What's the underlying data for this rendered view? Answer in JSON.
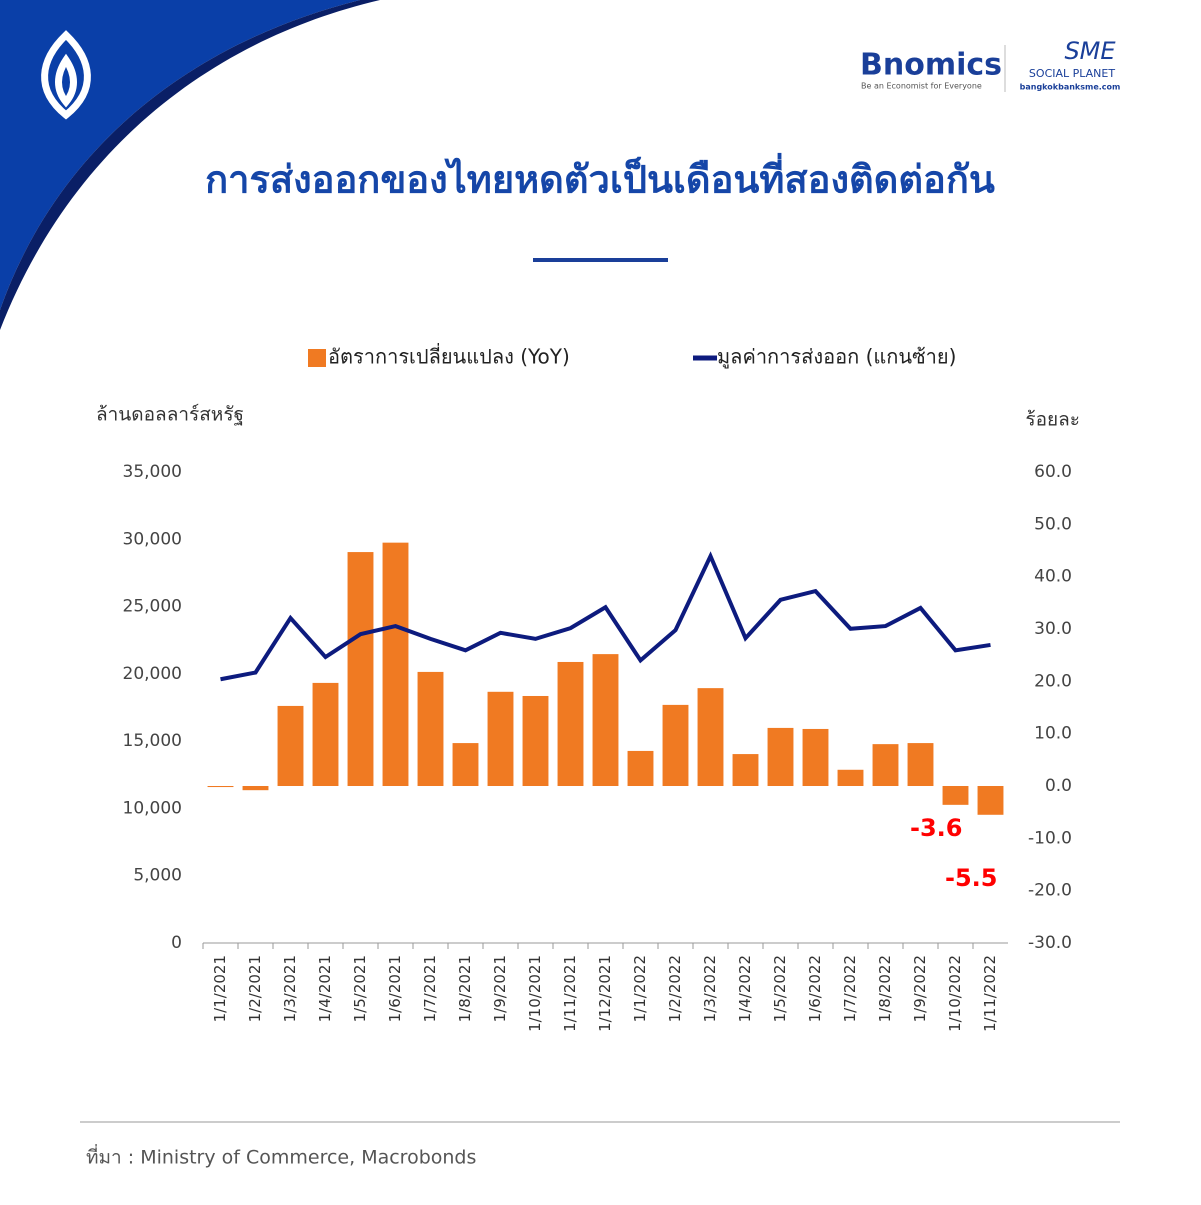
{
  "header": {
    "brand": "Bnomics",
    "tagline": "Be an Economist for Everyone",
    "partner": "SME",
    "partner_sub": "SOCIAL PLANET",
    "partner_url": "bangkokbanksme.com"
  },
  "chart_data": {
    "type": "combo",
    "title": "การส่งออกของไทยหดตัวเป็นเดือนที่สองติดต่อกัน",
    "y_label": "ล้านดอลลาร์สหรัฐ",
    "y2_label": "ร้อยละ",
    "categories": [
      "1/1/2021",
      "1/2/2021",
      "1/3/2021",
      "1/4/2021",
      "1/5/2021",
      "1/6/2021",
      "1/7/2021",
      "1/8/2021",
      "1/9/2021",
      "1/10/2021",
      "1/11/2021",
      "1/12/2021",
      "1/1/2022",
      "1/2/2022",
      "1/3/2022",
      "1/4/2022",
      "1/5/2022",
      "1/6/2022",
      "1/7/2022",
      "1/8/2022",
      "1/9/2022",
      "1/10/2022",
      "1/11/2022"
    ],
    "series": [
      {
        "name": "อัตราการเปลี่ยนแปลง (YoY)",
        "type": "bar",
        "axis": "y2",
        "color": "#f07a22",
        "values": [
          -0.2,
          -0.8,
          15.3,
          19.7,
          44.7,
          46.5,
          21.8,
          8.2,
          18.0,
          17.2,
          23.7,
          25.2,
          6.7,
          15.5,
          18.7,
          6.1,
          11.1,
          10.9,
          3.1,
          8.0,
          8.2,
          -3.6,
          -5.5
        ],
        "value_labels": [
          null,
          null,
          null,
          null,
          null,
          null,
          null,
          null,
          null,
          null,
          null,
          null,
          null,
          null,
          null,
          null,
          null,
          null,
          null,
          null,
          null,
          "-3.6",
          "-5.5"
        ],
        "label_color": "#ff0000"
      },
      {
        "name": "มูลค่าการส่งออก (แกนซ้าย)",
        "type": "line",
        "axis": "y",
        "color": "#0d1b7e",
        "values": [
          19600,
          20100,
          24150,
          21250,
          22950,
          23550,
          22600,
          21750,
          23050,
          22600,
          23400,
          24950,
          21000,
          23250,
          28750,
          22650,
          25500,
          26150,
          23350,
          23550,
          24900,
          21750,
          22150
        ]
      }
    ],
    "ylim": [
      0,
      35000
    ],
    "yticks": [
      {
        "value": 0,
        "label": "0"
      },
      {
        "value": 5000,
        "label": "5,000"
      },
      {
        "value": 10000,
        "label": "10,000"
      },
      {
        "value": 15000,
        "label": "15,000"
      },
      {
        "value": 20000,
        "label": "20,000"
      },
      {
        "value": 25000,
        "label": "25,000"
      },
      {
        "value": 30000,
        "label": "30,000"
      },
      {
        "value": 35000,
        "label": "35,000"
      }
    ],
    "y2lim": [
      -30,
      60
    ],
    "y2ticks": [
      {
        "value": -30,
        "label": "-30.0"
      },
      {
        "value": -20,
        "label": "-20.0"
      },
      {
        "value": -10,
        "label": "-10.0"
      },
      {
        "value": 0,
        "label": "0.0"
      },
      {
        "value": 10,
        "label": "10.0"
      },
      {
        "value": 20,
        "label": "20.0"
      },
      {
        "value": 30,
        "label": "30.0"
      },
      {
        "value": 40,
        "label": "40.0"
      },
      {
        "value": 50,
        "label": "50.0"
      },
      {
        "value": 60,
        "label": "60.0"
      }
    ],
    "grid": false
  },
  "footer": {
    "source": "ที่มา : Ministry of Commerce, Macrobonds"
  }
}
